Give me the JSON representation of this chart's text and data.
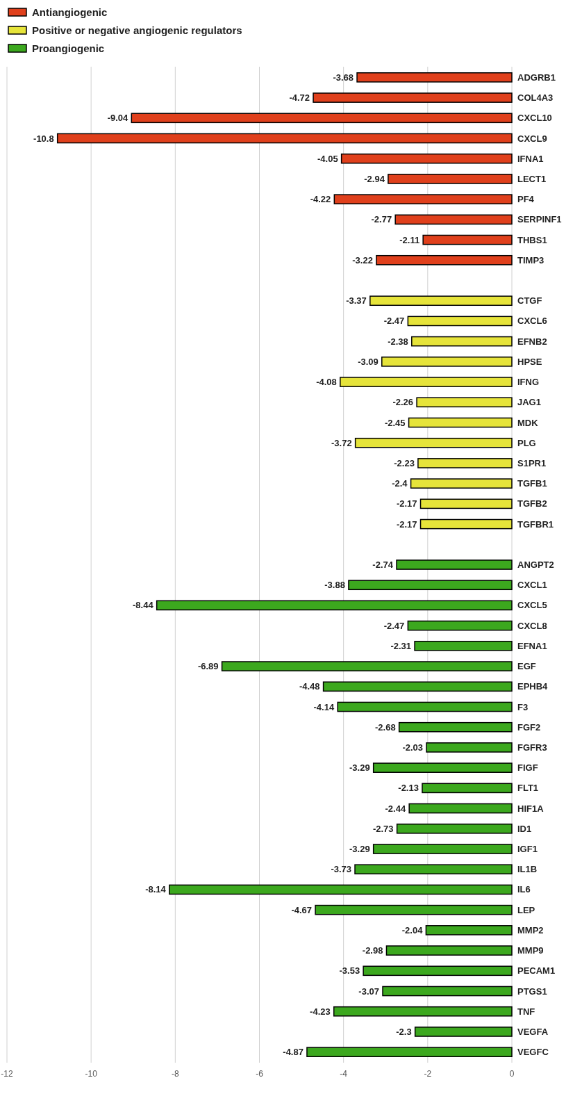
{
  "chart_data": {
    "type": "bar",
    "orientation": "horizontal",
    "categories": [
      "ADGRB1",
      "COL4A3",
      "CXCL10",
      "CXCL9",
      "IFNA1",
      "LECT1",
      "PF4",
      "SERPINF1",
      "THBS1",
      "TIMP3",
      null,
      "CTGF",
      "CXCL6",
      "EFNB2",
      "HPSE",
      "IFNG",
      "JAG1",
      "MDK",
      "PLG",
      "S1PR1",
      "TGFB1",
      "TGFB2",
      "TGFBR1",
      null,
      "ANGPT2",
      "CXCL1",
      "CXCL5",
      "CXCL8",
      "EFNA1",
      "EGF",
      "EPHB4",
      "F3",
      "FGF2",
      "FGFR3",
      "FIGF",
      "FLT1",
      "HIF1A",
      "ID1",
      "IGF1",
      "IL1B",
      "IL6",
      "LEP",
      "MMP2",
      "MMP9",
      "PECAM1",
      "PTGS1",
      "TNF",
      "VEGFA",
      "VEGFC"
    ],
    "series": [
      {
        "name": "Antiangiogenic",
        "color": "#e0401c",
        "values": [
          -3.68,
          -4.72,
          -9.04,
          -10.8,
          -4.05,
          -2.94,
          -4.22,
          -2.77,
          -2.11,
          -3.22,
          null,
          null,
          null,
          null,
          null,
          null,
          null,
          null,
          null,
          null,
          null,
          null,
          null,
          null,
          null,
          null,
          null,
          null,
          null,
          null,
          null,
          null,
          null,
          null,
          null,
          null,
          null,
          null,
          null,
          null,
          null,
          null,
          null,
          null,
          null,
          null,
          null,
          null,
          null
        ]
      },
      {
        "name": "Positive or negative angiogenic regulators",
        "color": "#e6e43a",
        "values": [
          null,
          null,
          null,
          null,
          null,
          null,
          null,
          null,
          null,
          null,
          null,
          -3.37,
          -2.47,
          -2.38,
          -3.09,
          -4.08,
          -2.26,
          -2.45,
          -3.72,
          -2.23,
          -2.4,
          -2.17,
          -2.17,
          null,
          null,
          null,
          null,
          null,
          null,
          null,
          null,
          null,
          null,
          null,
          null,
          null,
          null,
          null,
          null,
          null,
          null,
          null,
          null,
          null,
          null,
          null,
          null,
          null,
          null
        ]
      },
      {
        "name": "Proangiogenic",
        "color": "#3ca81e",
        "values": [
          null,
          null,
          null,
          null,
          null,
          null,
          null,
          null,
          null,
          null,
          null,
          null,
          null,
          null,
          null,
          null,
          null,
          null,
          null,
          null,
          null,
          null,
          null,
          null,
          -2.74,
          -3.88,
          -8.44,
          -2.47,
          -2.31,
          -6.89,
          -4.48,
          -4.14,
          -2.68,
          -2.03,
          -3.29,
          -2.13,
          -2.44,
          -2.73,
          -3.29,
          -3.73,
          -8.14,
          -4.67,
          -2.04,
          -2.98,
          -3.53,
          -3.07,
          -4.23,
          -2.3,
          -4.87
        ]
      }
    ],
    "xlim": [
      -12,
      0
    ],
    "xticks": [
      -12,
      -10,
      -8,
      -6,
      -4,
      -2,
      0
    ],
    "grid": "x",
    "legend": "top left",
    "data_labels": true
  }
}
